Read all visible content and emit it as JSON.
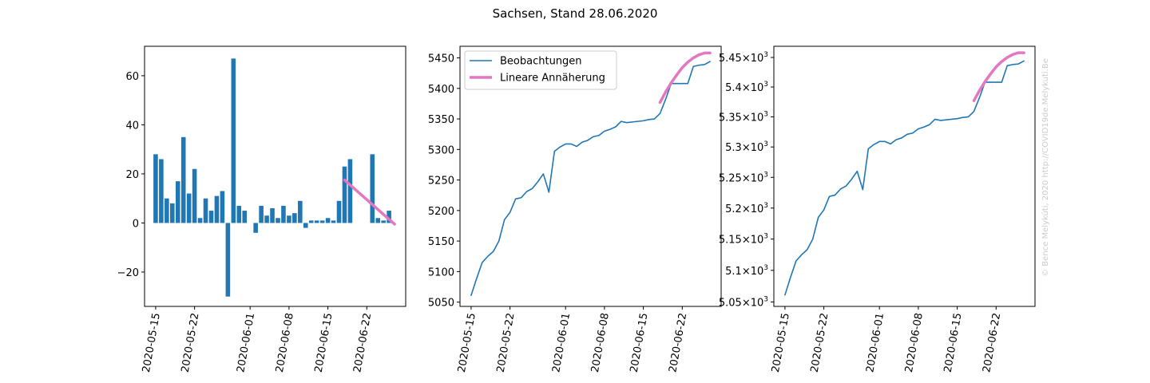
{
  "figure": {
    "suptitle": "Sachsen, Stand 28.06.2020",
    "credit": "© Bence Melykúti, 2020   http://COVID19de.Melykuti.Be"
  },
  "chart_data": [
    {
      "type": "bar",
      "title": "",
      "xlabel": "",
      "ylabel": "",
      "x_range": [
        "2020-05-13",
        "2020-06-29"
      ],
      "ylim": [
        -34,
        72
      ],
      "yticks": [
        -20,
        0,
        20,
        40,
        60
      ],
      "xticks": [
        "2020-05-15",
        "2020-05-22",
        "2020-06-01",
        "2020-06-08",
        "2020-06-15",
        "2020-06-22"
      ],
      "grid": false,
      "colors": {
        "bars": "#1f77b4",
        "fit": "#e377c2"
      },
      "bars": [
        {
          "x": "2020-05-15",
          "value": 28
        },
        {
          "x": "2020-05-16",
          "value": 26
        },
        {
          "x": "2020-05-17",
          "value": 10
        },
        {
          "x": "2020-05-18",
          "value": 8
        },
        {
          "x": "2020-05-19",
          "value": 17
        },
        {
          "x": "2020-05-20",
          "value": 35
        },
        {
          "x": "2020-05-21",
          "value": 12
        },
        {
          "x": "2020-05-22",
          "value": 22
        },
        {
          "x": "2020-05-23",
          "value": 2
        },
        {
          "x": "2020-05-24",
          "value": 10
        },
        {
          "x": "2020-05-25",
          "value": 5
        },
        {
          "x": "2020-05-26",
          "value": 11
        },
        {
          "x": "2020-05-27",
          "value": 13
        },
        {
          "x": "2020-05-28",
          "value": -30
        },
        {
          "x": "2020-05-29",
          "value": 67
        },
        {
          "x": "2020-05-30",
          "value": 7
        },
        {
          "x": "2020-05-31",
          "value": 5
        },
        {
          "x": "2020-06-02",
          "value": -4
        },
        {
          "x": "2020-06-03",
          "value": 7
        },
        {
          "x": "2020-06-04",
          "value": 3
        },
        {
          "x": "2020-06-05",
          "value": 6
        },
        {
          "x": "2020-06-06",
          "value": 2
        },
        {
          "x": "2020-06-07",
          "value": 7
        },
        {
          "x": "2020-06-08",
          "value": 3
        },
        {
          "x": "2020-06-09",
          "value": 4
        },
        {
          "x": "2020-06-10",
          "value": 9
        },
        {
          "x": "2020-06-11",
          "value": -2
        },
        {
          "x": "2020-06-12",
          "value": 1
        },
        {
          "x": "2020-06-13",
          "value": 1
        },
        {
          "x": "2020-06-14",
          "value": 1
        },
        {
          "x": "2020-06-15",
          "value": 2
        },
        {
          "x": "2020-06-16",
          "value": 1
        },
        {
          "x": "2020-06-17",
          "value": 9
        },
        {
          "x": "2020-06-18",
          "value": 23
        },
        {
          "x": "2020-06-19",
          "value": 26
        },
        {
          "x": "2020-06-23",
          "value": 28
        },
        {
          "x": "2020-06-24",
          "value": 2
        },
        {
          "x": "2020-06-25",
          "value": 1
        },
        {
          "x": "2020-06-26",
          "value": 5
        }
      ],
      "fit": {
        "x": [
          "2020-06-18",
          "2020-06-19",
          "2020-06-20",
          "2020-06-21",
          "2020-06-22",
          "2020-06-23",
          "2020-06-24",
          "2020-06-25",
          "2020-06-26",
          "2020-06-27"
        ],
        "y": [
          17.5,
          15.5,
          13.5,
          11.5,
          9.5,
          7.5,
          5.5,
          3.5,
          1.5,
          -0.5
        ]
      }
    },
    {
      "type": "line",
      "title": "",
      "xlabel": "",
      "ylabel": "",
      "x_range": [
        "2020-05-13",
        "2020-06-29"
      ],
      "ylim": [
        5043,
        5469
      ],
      "yticks": [
        5050,
        5100,
        5150,
        5200,
        5250,
        5300,
        5350,
        5400,
        5450
      ],
      "xticks": [
        "2020-05-15",
        "2020-05-22",
        "2020-06-01",
        "2020-06-08",
        "2020-06-15",
        "2020-06-22"
      ],
      "grid": false,
      "legend_position": "upper-left",
      "series": [
        {
          "name": "Beobachtungen",
          "color": "#1f77b4",
          "x": [
            "2020-05-15",
            "2020-05-16",
            "2020-05-17",
            "2020-05-18",
            "2020-05-19",
            "2020-05-20",
            "2020-05-21",
            "2020-05-22",
            "2020-05-23",
            "2020-05-24",
            "2020-05-25",
            "2020-05-26",
            "2020-05-27",
            "2020-05-28",
            "2020-05-29",
            "2020-05-30",
            "2020-05-31",
            "2020-06-01",
            "2020-06-02",
            "2020-06-03",
            "2020-06-04",
            "2020-06-05",
            "2020-06-06",
            "2020-06-07",
            "2020-06-08",
            "2020-06-09",
            "2020-06-10",
            "2020-06-11",
            "2020-06-12",
            "2020-06-13",
            "2020-06-14",
            "2020-06-15",
            "2020-06-16",
            "2020-06-17",
            "2020-06-18",
            "2020-06-19",
            "2020-06-20",
            "2020-06-21",
            "2020-06-22",
            "2020-06-23",
            "2020-06-24",
            "2020-06-25",
            "2020-06-26",
            "2020-06-27"
          ],
          "y": [
            5061,
            5089,
            5115,
            5125,
            5133,
            5150,
            5185,
            5197,
            5219,
            5221,
            5231,
            5236,
            5247,
            5260,
            5230,
            5297,
            5304,
            5309,
            5309,
            5305,
            5312,
            5315,
            5321,
            5323,
            5330,
            5333,
            5337,
            5346,
            5344,
            5345,
            5346,
            5347,
            5349,
            5350,
            5359,
            5382,
            5408,
            5408,
            5408,
            5408,
            5436,
            5438,
            5439,
            5444
          ]
        },
        {
          "name": "Lineare Annäherung",
          "color": "#e377c2",
          "x": [
            "2020-06-18",
            "2020-06-19",
            "2020-06-20",
            "2020-06-21",
            "2020-06-22",
            "2020-06-23",
            "2020-06-24",
            "2020-06-25",
            "2020-06-26",
            "2020-06-27"
          ],
          "y": [
            5377,
            5394,
            5409,
            5422,
            5434,
            5443,
            5450,
            5455,
            5458,
            5458
          ]
        }
      ]
    },
    {
      "type": "line",
      "title": "",
      "xlabel": "",
      "ylabel": "",
      "yscale": "log",
      "x_range": [
        "2020-05-13",
        "2020-06-29"
      ],
      "ylim": [
        5043,
        5469
      ],
      "ytick_values": [
        5050,
        5100,
        5150,
        5200,
        5250,
        5300,
        5350,
        5400,
        5450
      ],
      "ytick_mantissas": [
        "5.05",
        "5.1",
        "5.15",
        "5.2",
        "5.25",
        "5.3",
        "5.35",
        "5.4",
        "5.45"
      ],
      "ytick_times": "×",
      "ytick_base": "10",
      "ytick_exponent": "3",
      "xticks": [
        "2020-05-15",
        "2020-05-22",
        "2020-06-01",
        "2020-06-08",
        "2020-06-15",
        "2020-06-22"
      ],
      "grid": false,
      "series": [
        {
          "color": "#1f77b4",
          "x": [
            "2020-05-15",
            "2020-05-16",
            "2020-05-17",
            "2020-05-18",
            "2020-05-19",
            "2020-05-20",
            "2020-05-21",
            "2020-05-22",
            "2020-05-23",
            "2020-05-24",
            "2020-05-25",
            "2020-05-26",
            "2020-05-27",
            "2020-05-28",
            "2020-05-29",
            "2020-05-30",
            "2020-05-31",
            "2020-06-01",
            "2020-06-02",
            "2020-06-03",
            "2020-06-04",
            "2020-06-05",
            "2020-06-06",
            "2020-06-07",
            "2020-06-08",
            "2020-06-09",
            "2020-06-10",
            "2020-06-11",
            "2020-06-12",
            "2020-06-13",
            "2020-06-14",
            "2020-06-15",
            "2020-06-16",
            "2020-06-17",
            "2020-06-18",
            "2020-06-19",
            "2020-06-20",
            "2020-06-21",
            "2020-06-22",
            "2020-06-23",
            "2020-06-24",
            "2020-06-25",
            "2020-06-26",
            "2020-06-27"
          ],
          "y": [
            5061,
            5089,
            5115,
            5125,
            5133,
            5150,
            5185,
            5197,
            5219,
            5221,
            5231,
            5236,
            5247,
            5260,
            5230,
            5297,
            5304,
            5309,
            5309,
            5305,
            5312,
            5315,
            5321,
            5323,
            5330,
            5333,
            5337,
            5346,
            5344,
            5345,
            5346,
            5347,
            5349,
            5350,
            5359,
            5382,
            5408,
            5408,
            5408,
            5408,
            5436,
            5438,
            5439,
            5444
          ]
        },
        {
          "color": "#e377c2",
          "x": [
            "2020-06-18",
            "2020-06-19",
            "2020-06-20",
            "2020-06-21",
            "2020-06-22",
            "2020-06-23",
            "2020-06-24",
            "2020-06-25",
            "2020-06-26",
            "2020-06-27"
          ],
          "y": [
            5377,
            5394,
            5409,
            5422,
            5434,
            5443,
            5450,
            5455,
            5458,
            5458
          ]
        }
      ]
    }
  ]
}
